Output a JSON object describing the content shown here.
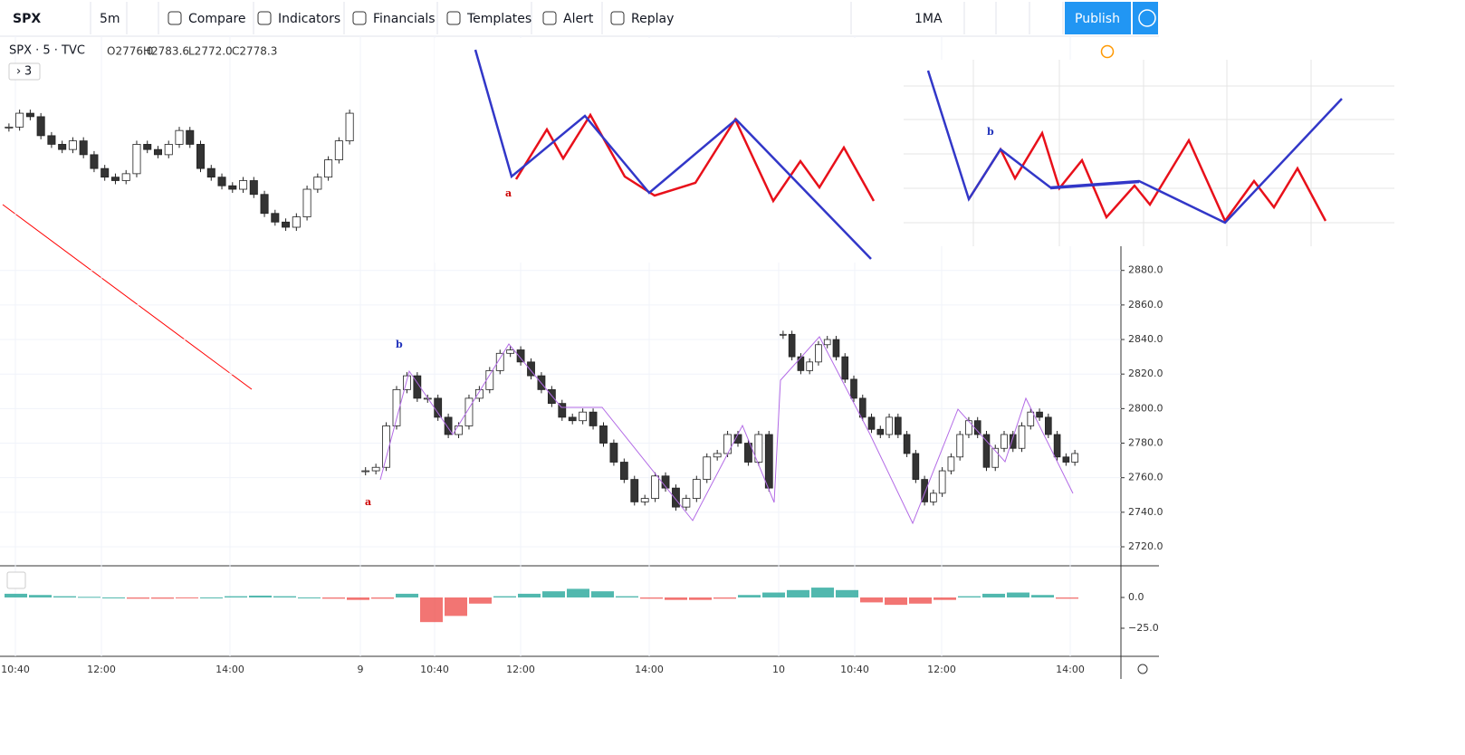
{
  "toolbar": {
    "symbol": "SPX",
    "interval": "5m",
    "buttons": [
      "Compare",
      "Indicators",
      "Financials",
      "Templates",
      "Alert",
      "Replay"
    ],
    "layout": "1MA",
    "publish": "Publish"
  },
  "legend": {
    "title": "SPX · 5 · TVC",
    "ohlc": [
      "O2776.0",
      "H2783.6",
      "L2772.0",
      "C2778.3"
    ],
    "collapsed": "3"
  },
  "annotations": {
    "main": [
      "b",
      "a"
    ],
    "overlay_left": [
      "a"
    ],
    "overlay_right": [
      "b"
    ]
  },
  "chart_data": {
    "type": "candlestick",
    "segments": [
      {
        "closes": [
          2963,
          2971,
          2969,
          2958,
          2953,
          2950,
          2955,
          2947,
          2939,
          2934,
          2932,
          2936,
          2953,
          2950,
          2947,
          2953,
          2961,
          2953,
          2939,
          2934,
          2929,
          2927,
          2932,
          2924,
          2913,
          2908,
          2905,
          2911,
          2927,
          2934,
          2944,
          2955,
          2971
        ]
      },
      {
        "closes": [
          2764,
          2766,
          2790,
          2811,
          2819,
          2806,
          2806,
          2795,
          2785,
          2790,
          2806,
          2811,
          2822,
          2832,
          2834,
          2827,
          2819,
          2811,
          2803,
          2795,
          2793,
          2798,
          2790,
          2780,
          2769,
          2759,
          2746,
          2748,
          2761,
          2754,
          2743,
          2748,
          2759,
          2772,
          2774,
          2785,
          2780,
          2769,
          2785,
          2754
        ]
      },
      {
        "closes": [
          2843,
          2830,
          2822,
          2827,
          2837,
          2840,
          2830,
          2817,
          2806,
          2795,
          2788,
          2785,
          2795,
          2785,
          2774,
          2759,
          2746,
          2751,
          2764,
          2772,
          2785,
          2793,
          2785,
          2766,
          2777,
          2785,
          2777,
          2790,
          2798,
          2795,
          2785,
          2772,
          2769,
          2774
        ]
      }
    ],
    "ylim": [
      2709,
      2894
    ],
    "yticks": [
      {
        "value": 2880,
        "label": "2880.0"
      },
      {
        "value": 2860,
        "label": "2860.0"
      },
      {
        "value": 2840,
        "label": "2840.0"
      },
      {
        "value": 2820,
        "label": "2820.0"
      },
      {
        "value": 2800,
        "label": "2800.0"
      },
      {
        "value": 2780,
        "label": "2780.0"
      },
      {
        "value": 2760,
        "label": "2760.0"
      },
      {
        "value": 2740,
        "label": "2740.0"
      },
      {
        "value": 2720,
        "label": "2720.0"
      }
    ],
    "xticks": [
      "10:40",
      "12:00",
      "14:00",
      "9",
      "10:40",
      "12:00",
      "14:00",
      "10",
      "10:40",
      "12:00",
      "14:00"
    ],
    "macd": {
      "values": [
        3,
        2,
        1,
        0.5,
        0,
        -1,
        -1,
        -0.5,
        0,
        1,
        1.5,
        1,
        0,
        -1,
        -2,
        -1,
        3,
        -20,
        -15,
        -5,
        1,
        3,
        5,
        7,
        5,
        1,
        -1,
        -2,
        -2,
        -1,
        2,
        4,
        6,
        8,
        6,
        -4,
        -6,
        -5,
        -2,
        1,
        3,
        4,
        2,
        -1
      ],
      "ylim": [
        -47.8,
        23.5
      ],
      "yticks": [
        {
          "value": 0,
          "label": "0.0"
        },
        {
          "value": -25,
          "label": "−25.0"
        }
      ],
      "up_color": "#26a69a",
      "down_color": "#ef5350"
    }
  }
}
